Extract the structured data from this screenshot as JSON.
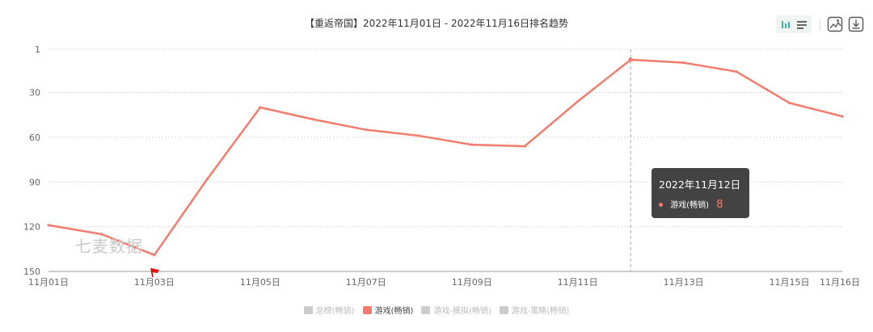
{
  "title": "【重返帝国】2022年11月01日 - 2022年11月16日排名趋势",
  "watermark": "七麦数据",
  "colors": {
    "line": "#f47c6c",
    "grid": "#d9d9d9",
    "axis": "#666666",
    "accent": "#3bb89f",
    "tooltip_bg": "#333333"
  },
  "toolbar": {
    "icons": [
      "bar-chart-icon",
      "list-icon",
      "image-icon",
      "download-icon"
    ]
  },
  "tooltip": {
    "title": "2022年11月12日",
    "series": "游戏(畅销)",
    "value": "8"
  },
  "legend": [
    {
      "label": "总榜(畅销)",
      "active": false,
      "color": "#cccccc"
    },
    {
      "label": "游戏(畅销)",
      "active": true,
      "color": "#f47c6c"
    },
    {
      "label": "游戏-模拟(畅销)",
      "active": false,
      "color": "#cccccc"
    },
    {
      "label": "游戏-策略(畅销)",
      "active": false,
      "color": "#cccccc"
    }
  ],
  "chart_data": {
    "type": "line",
    "title": "【重返帝国】2022年11月01日 - 2022年11月16日排名趋势",
    "x": [
      "11月01日",
      "11月02日",
      "11月03日",
      "11月04日",
      "11月05日",
      "11月06日",
      "11月07日",
      "11月08日",
      "11月09日",
      "11月10日",
      "11月11日",
      "11月12日",
      "11月13日",
      "11月14日",
      "11月15日",
      "11月16日"
    ],
    "x_tick_labels": [
      "11月01日",
      "11月03日",
      "11月05日",
      "11月07日",
      "11月09日",
      "11月11日",
      "11月13日",
      "11月15日",
      "11月16日"
    ],
    "y_ticks": [
      1,
      30,
      60,
      90,
      120,
      150
    ],
    "ylim": [
      1,
      150
    ],
    "y_inverted": true,
    "grid": true,
    "series": [
      {
        "name": "游戏(畅销)",
        "values": [
          119,
          125,
          139,
          88,
          40,
          48,
          55,
          59,
          65,
          66,
          36,
          8,
          10,
          16,
          37,
          46
        ]
      }
    ],
    "highlight": {
      "x": "11月12日",
      "value": 8
    },
    "flag_marker": "11月03日"
  }
}
